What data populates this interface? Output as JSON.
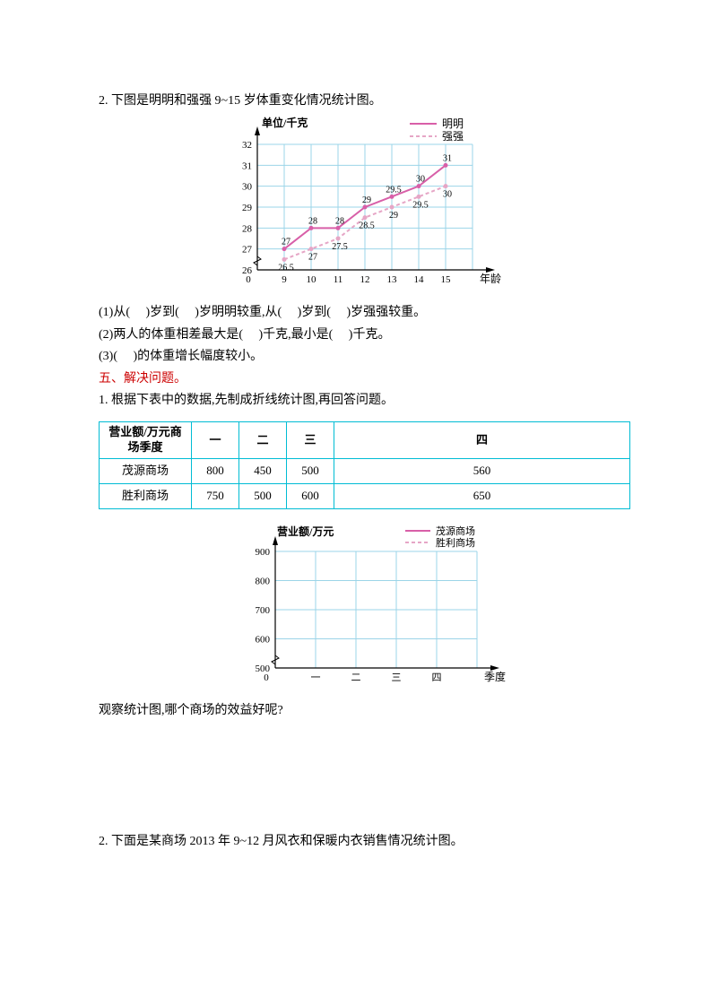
{
  "q2": {
    "title": "2. 下图是明明和强强 9~15 岁体重变化情况统计图。",
    "sub1": "(1)从(　  )岁到(　  )岁明明较重,从(　  )岁到(　  )岁强强较重。",
    "sub2": "(2)两人的体重相差最大是(　  )千克,最小是(　  )千克。",
    "sub3": "(3)(　  )的体重增长幅度较小。"
  },
  "chart1": {
    "ylabel": "单位/千克",
    "xlabel": "年龄",
    "legend": {
      "a": "明明",
      "b": "强强"
    },
    "ages": [
      9,
      10,
      11,
      12,
      13,
      14,
      15
    ],
    "yticks": [
      26,
      27,
      28,
      29,
      30,
      31,
      32
    ],
    "mingming": {
      "values": [
        27,
        28,
        28,
        29,
        29.5,
        30,
        31
      ],
      "labels": [
        "27",
        "28",
        "28",
        "29",
        "29.5",
        "30",
        "31"
      ],
      "color": "#d85fa8"
    },
    "qiangqiang": {
      "values": [
        26.5,
        27,
        27.5,
        28.5,
        29,
        29.5,
        30
      ],
      "labels": [
        "26.5",
        "27",
        "27.5",
        "28.5",
        "29",
        "29.5",
        "30"
      ],
      "color": "#e6a6c6"
    },
    "gridColor": "#9bd4e8",
    "axisColor": "#000000",
    "background": "#ffffff",
    "zigzag": true
  },
  "section5": "五、解决问题。",
  "q5_1": {
    "title": "1. 根据下表中的数据,先制成折线统计图,再回答问题。",
    "table": {
      "headerCell": "营业额/万元商场季度",
      "cols": [
        "一",
        "二",
        "三",
        "四"
      ],
      "rows": [
        {
          "name": "茂源商场",
          "values": [
            "800",
            "450",
            "500",
            "560"
          ]
        },
        {
          "name": "胜利商场",
          "values": [
            "750",
            "500",
            "600",
            "650"
          ]
        }
      ]
    },
    "question": "观察统计图,哪个商场的效益好呢?"
  },
  "chart2": {
    "ylabel": "营业额/万元",
    "xlabel": "季度",
    "legend": {
      "a": "茂源商场",
      "b": "胜利商场"
    },
    "quarters": [
      "一",
      "二",
      "三",
      "四"
    ],
    "yticks": [
      500,
      600,
      700,
      800,
      900
    ],
    "colorA": "#d85fa8",
    "colorB": "#e6a6c6",
    "gridColor": "#9bd4e8",
    "axisColor": "#000000",
    "zigzag": true
  },
  "q5_2": {
    "title": "2. 下面是某商场 2013 年 9~12 月风衣和保暖内衣销售情况统计图。"
  }
}
